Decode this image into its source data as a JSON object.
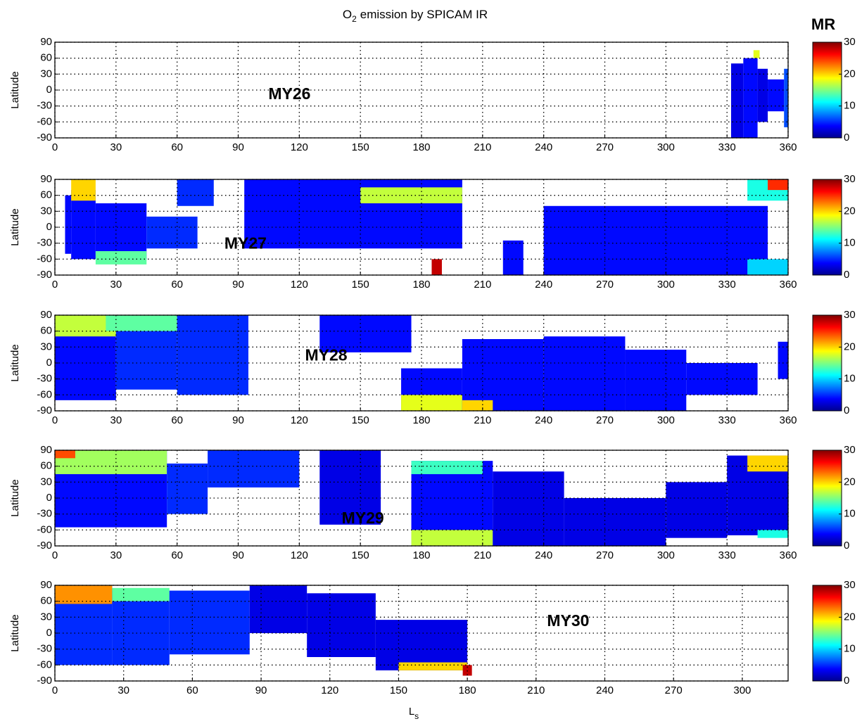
{
  "figure": {
    "title_parts": [
      "O",
      "2",
      "emission by SPICAM IR"
    ],
    "xlabel_parts": [
      "L",
      "s"
    ],
    "colorbar_label": "MR"
  },
  "chart_data": [
    {
      "type": "heatmap",
      "label": "MY26",
      "ylabel": "Latitude",
      "xlim": [
        0,
        360
      ],
      "xticks": [
        0,
        30,
        60,
        90,
        120,
        150,
        180,
        210,
        240,
        270,
        300,
        330,
        360
      ],
      "ylim": [
        -90,
        90
      ],
      "yticks": [
        -90,
        -60,
        -30,
        0,
        30,
        60,
        90
      ],
      "clim": [
        0,
        30
      ],
      "cticks": [
        0,
        10,
        20,
        30
      ],
      "grid": true,
      "cells": [
        {
          "x": [
            332,
            338
          ],
          "y": [
            -90,
            50
          ],
          "value": 3
        },
        {
          "x": [
            338,
            345
          ],
          "y": [
            -90,
            60
          ],
          "value": 4
        },
        {
          "x": [
            345,
            350
          ],
          "y": [
            -60,
            40
          ],
          "value": 3
        },
        {
          "x": [
            350,
            358
          ],
          "y": [
            -40,
            20
          ],
          "value": 4
        },
        {
          "x": [
            358,
            360
          ],
          "y": [
            -70,
            40
          ],
          "value": 6
        },
        {
          "x": [
            343,
            346
          ],
          "y": [
            60,
            75
          ],
          "value": 18
        }
      ]
    },
    {
      "type": "heatmap",
      "label": "MY27",
      "ylabel": "Latitude",
      "xlim": [
        0,
        360
      ],
      "xticks": [
        0,
        30,
        60,
        90,
        120,
        150,
        180,
        210,
        240,
        270,
        300,
        330,
        360
      ],
      "ylim": [
        -90,
        90
      ],
      "yticks": [
        -90,
        -60,
        -30,
        0,
        30,
        60,
        90
      ],
      "clim": [
        0,
        30
      ],
      "cticks": [
        0,
        10,
        20,
        30
      ],
      "grid": true,
      "cells": [
        {
          "x": [
            5,
            8
          ],
          "y": [
            -50,
            60
          ],
          "value": 4
        },
        {
          "x": [
            8,
            20
          ],
          "y": [
            -60,
            70
          ],
          "value": 4
        },
        {
          "x": [
            8,
            20
          ],
          "y": [
            50,
            90
          ],
          "value": 20
        },
        {
          "x": [
            20,
            45
          ],
          "y": [
            -60,
            45
          ],
          "value": 4
        },
        {
          "x": [
            20,
            45
          ],
          "y": [
            -70,
            -45
          ],
          "value": 14
        },
        {
          "x": [
            45,
            70
          ],
          "y": [
            -40,
            20
          ],
          "value": 5
        },
        {
          "x": [
            60,
            78
          ],
          "y": [
            40,
            90
          ],
          "value": 5
        },
        {
          "x": [
            93,
            200
          ],
          "y": [
            -40,
            90
          ],
          "value": 4
        },
        {
          "x": [
            150,
            200
          ],
          "y": [
            45,
            75
          ],
          "value": 17
        },
        {
          "x": [
            185,
            190
          ],
          "y": [
            -90,
            -60
          ],
          "value": 28
        },
        {
          "x": [
            220,
            230
          ],
          "y": [
            -90,
            -25
          ],
          "value": 4
        },
        {
          "x": [
            240,
            350
          ],
          "y": [
            -90,
            40
          ],
          "value": 4
        },
        {
          "x": [
            340,
            360
          ],
          "y": [
            -90,
            -60
          ],
          "value": 10
        },
        {
          "x": [
            340,
            360
          ],
          "y": [
            50,
            90
          ],
          "value": 12
        },
        {
          "x": [
            350,
            360
          ],
          "y": [
            70,
            90
          ],
          "value": 25
        }
      ]
    },
    {
      "type": "heatmap",
      "label": "MY28",
      "ylabel": "Latitude",
      "xlim": [
        0,
        360
      ],
      "xticks": [
        0,
        30,
        60,
        90,
        120,
        150,
        180,
        210,
        240,
        270,
        300,
        330,
        360
      ],
      "ylim": [
        -90,
        90
      ],
      "yticks": [
        -90,
        -60,
        -30,
        0,
        30,
        60,
        90
      ],
      "clim": [
        0,
        30
      ],
      "cticks": [
        0,
        10,
        20,
        30
      ],
      "grid": true,
      "cells": [
        {
          "x": [
            0,
            30
          ],
          "y": [
            -70,
            90
          ],
          "value": 4
        },
        {
          "x": [
            0,
            30
          ],
          "y": [
            50,
            90
          ],
          "value": 17
        },
        {
          "x": [
            30,
            60
          ],
          "y": [
            -50,
            85
          ],
          "value": 5
        },
        {
          "x": [
            25,
            60
          ],
          "y": [
            60,
            90
          ],
          "value": 14
        },
        {
          "x": [
            60,
            95
          ],
          "y": [
            -60,
            90
          ],
          "value": 5
        },
        {
          "x": [
            130,
            175
          ],
          "y": [
            20,
            90
          ],
          "value": 4
        },
        {
          "x": [
            170,
            200
          ],
          "y": [
            -90,
            -10
          ],
          "value": 4
        },
        {
          "x": [
            170,
            200
          ],
          "y": [
            -90,
            -60
          ],
          "value": 18
        },
        {
          "x": [
            200,
            240
          ],
          "y": [
            -90,
            45
          ],
          "value": 4
        },
        {
          "x": [
            200,
            215
          ],
          "y": [
            -90,
            -70
          ],
          "value": 20
        },
        {
          "x": [
            240,
            280
          ],
          "y": [
            -90,
            50
          ],
          "value": 4
        },
        {
          "x": [
            280,
            310
          ],
          "y": [
            -90,
            25
          ],
          "value": 4
        },
        {
          "x": [
            310,
            345
          ],
          "y": [
            -60,
            0
          ],
          "value": 4
        },
        {
          "x": [
            355,
            360
          ],
          "y": [
            -30,
            40
          ],
          "value": 4
        }
      ]
    },
    {
      "type": "heatmap",
      "label": "MY29",
      "ylabel": "Latitude",
      "xlim": [
        0,
        360
      ],
      "xticks": [
        0,
        30,
        60,
        90,
        120,
        150,
        180,
        210,
        240,
        270,
        300,
        330,
        360
      ],
      "ylim": [
        -90,
        90
      ],
      "yticks": [
        -90,
        -60,
        -30,
        0,
        30,
        60,
        90
      ],
      "clim": [
        0,
        30
      ],
      "cticks": [
        0,
        10,
        20,
        30
      ],
      "grid": true,
      "cells": [
        {
          "x": [
            0,
            55
          ],
          "y": [
            -55,
            90
          ],
          "value": 4
        },
        {
          "x": [
            0,
            55
          ],
          "y": [
            45,
            90
          ],
          "value": 16
        },
        {
          "x": [
            0,
            10
          ],
          "y": [
            75,
            90
          ],
          "value": 24
        },
        {
          "x": [
            55,
            75
          ],
          "y": [
            -30,
            65
          ],
          "value": 5
        },
        {
          "x": [
            75,
            120
          ],
          "y": [
            20,
            90
          ],
          "value": 5
        },
        {
          "x": [
            130,
            160
          ],
          "y": [
            -50,
            90
          ],
          "value": 3
        },
        {
          "x": [
            175,
            215
          ],
          "y": [
            -90,
            70
          ],
          "value": 4
        },
        {
          "x": [
            175,
            215
          ],
          "y": [
            -90,
            -60
          ],
          "value": 17
        },
        {
          "x": [
            175,
            210
          ],
          "y": [
            45,
            70
          ],
          "value": 13
        },
        {
          "x": [
            215,
            250
          ],
          "y": [
            -90,
            50
          ],
          "value": 3
        },
        {
          "x": [
            250,
            300
          ],
          "y": [
            -90,
            0
          ],
          "value": 3
        },
        {
          "x": [
            300,
            330
          ],
          "y": [
            -75,
            30
          ],
          "value": 3
        },
        {
          "x": [
            330,
            360
          ],
          "y": [
            -70,
            80
          ],
          "value": 3
        },
        {
          "x": [
            340,
            360
          ],
          "y": [
            50,
            80
          ],
          "value": 20
        },
        {
          "x": [
            345,
            360
          ],
          "y": [
            -75,
            -60
          ],
          "value": 12
        }
      ]
    },
    {
      "type": "heatmap",
      "label": "MY30",
      "ylabel": "Latitude",
      "xlim": [
        0,
        320
      ],
      "xticks": [
        0,
        30,
        60,
        90,
        120,
        150,
        180,
        210,
        240,
        270,
        300
      ],
      "ylim": [
        -90,
        90
      ],
      "yticks": [
        -90,
        -60,
        -30,
        0,
        30,
        60,
        90
      ],
      "clim": [
        0,
        30
      ],
      "cticks": [
        0,
        10,
        20,
        30
      ],
      "grid": true,
      "cells": [
        {
          "x": [
            0,
            25
          ],
          "y": [
            -60,
            90
          ],
          "value": 5
        },
        {
          "x": [
            0,
            25
          ],
          "y": [
            55,
            90
          ],
          "value": 22
        },
        {
          "x": [
            25,
            50
          ],
          "y": [
            -60,
            80
          ],
          "value": 5
        },
        {
          "x": [
            25,
            50
          ],
          "y": [
            60,
            85
          ],
          "value": 14
        },
        {
          "x": [
            50,
            85
          ],
          "y": [
            -40,
            80
          ],
          "value": 5
        },
        {
          "x": [
            85,
            110
          ],
          "y": [
            0,
            90
          ],
          "value": 3
        },
        {
          "x": [
            110,
            140
          ],
          "y": [
            -45,
            75
          ],
          "value": 3
        },
        {
          "x": [
            140,
            180
          ],
          "y": [
            -70,
            25
          ],
          "value": 3
        },
        {
          "x": [
            150,
            180
          ],
          "y": [
            -70,
            -55
          ],
          "value": 20
        },
        {
          "x": [
            178,
            182
          ],
          "y": [
            -80,
            -60
          ],
          "value": 28
        }
      ]
    }
  ]
}
